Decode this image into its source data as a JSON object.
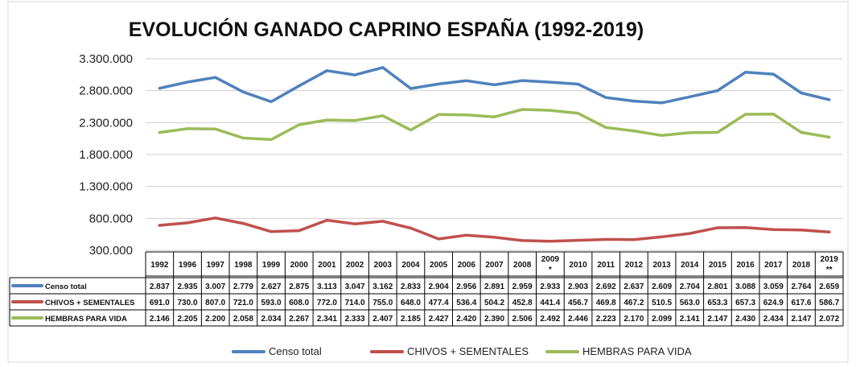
{
  "chart_data": {
    "type": "line",
    "title": "EVOLUCIÓN GANADO CAPRINO ESPAÑA (1992-2019)",
    "xlabel": "",
    "ylabel": "",
    "ylim": [
      300000,
      3300000
    ],
    "yticks": [
      300000,
      800000,
      1300000,
      1800000,
      2300000,
      2800000,
      3300000
    ],
    "ytick_labels": [
      "300.000",
      "800.000",
      "1.300.000",
      "1.800.000",
      "2.300.000",
      "2.800.000",
      "3.300.000"
    ],
    "grid": true,
    "legend": "bottom",
    "categories": [
      {
        "top": "1992",
        "bottom": ""
      },
      {
        "top": "1996",
        "bottom": ""
      },
      {
        "top": "1997",
        "bottom": ""
      },
      {
        "top": "1998",
        "bottom": ""
      },
      {
        "top": "1999",
        "bottom": ""
      },
      {
        "top": "2000",
        "bottom": ""
      },
      {
        "top": "2001",
        "bottom": ""
      },
      {
        "top": "2002",
        "bottom": ""
      },
      {
        "top": "2003",
        "bottom": ""
      },
      {
        "top": "2004",
        "bottom": ""
      },
      {
        "top": "2005",
        "bottom": ""
      },
      {
        "top": "2006",
        "bottom": ""
      },
      {
        "top": "2007",
        "bottom": ""
      },
      {
        "top": "2008",
        "bottom": ""
      },
      {
        "top": "2009",
        "bottom": "*"
      },
      {
        "top": "2010",
        "bottom": ""
      },
      {
        "top": "2011",
        "bottom": ""
      },
      {
        "top": "2012",
        "bottom": ""
      },
      {
        "top": "2013",
        "bottom": ""
      },
      {
        "top": "2014",
        "bottom": ""
      },
      {
        "top": "2015",
        "bottom": ""
      },
      {
        "top": "2016",
        "bottom": ""
      },
      {
        "top": "2017",
        "bottom": ""
      },
      {
        "top": "2018",
        "bottom": ""
      },
      {
        "top": "2019",
        "bottom": "**"
      }
    ],
    "series": [
      {
        "name": "Censo  total",
        "color": "#4f81bd",
        "values": [
          2837000,
          2935000,
          3007000,
          2779000,
          2627000,
          2875000,
          3113000,
          3047000,
          3162000,
          2833000,
          2904000,
          2956000,
          2891000,
          2959000,
          2933000,
          2903000,
          2692000,
          2637000,
          2609000,
          2704000,
          2801000,
          3088000,
          3059000,
          2764000,
          2659000
        ],
        "labels": [
          "2.837",
          "2.935",
          "3.007",
          "2.779",
          "2.627",
          "2.875",
          "3.113",
          "3.047",
          "3.162",
          "2.833",
          "2.904",
          "2.956",
          "2.891",
          "2.959",
          "2.933",
          "2.903",
          "2.692",
          "2.637",
          "2.609",
          "2.704",
          "2.801",
          "3.088",
          "3.059",
          "2.764",
          "2.659"
        ]
      },
      {
        "name": "CHIVOS + SEMENTALES",
        "color": "#c0504d",
        "values": [
          691000,
          730000,
          807000,
          721000,
          593000,
          608000,
          772000,
          714000,
          755000,
          648000,
          477400,
          536400,
          504200,
          452800,
          441400,
          456700,
          469800,
          467200,
          510500,
          563000,
          653300,
          657300,
          624900,
          617600,
          586700
        ],
        "labels": [
          "691.0",
          "730.0",
          "807.0",
          "721.0",
          "593.0",
          "608.0",
          "772.0",
          "714.0",
          "755.0",
          "648.0",
          "477.4",
          "536.4",
          "504.2",
          "452.8",
          "441.4",
          "456.7",
          "469.8",
          "467.2",
          "510.5",
          "563.0",
          "653.3",
          "657.3",
          "624.9",
          "617.6",
          "586.7"
        ]
      },
      {
        "name": "HEMBRAS PARA VIDA",
        "color": "#9bbb59",
        "values": [
          2146000,
          2205000,
          2200000,
          2058000,
          2034000,
          2267000,
          2341000,
          2333000,
          2407000,
          2185000,
          2427000,
          2420000,
          2390000,
          2506000,
          2492000,
          2446000,
          2223000,
          2170000,
          2099000,
          2141000,
          2147000,
          2430000,
          2434000,
          2147000,
          2072000
        ],
        "labels": [
          "2.146",
          "2.205",
          "2.200",
          "2.058",
          "2.034",
          "2.267",
          "2.341",
          "2.333",
          "2.407",
          "2.185",
          "2.427",
          "2.420",
          "2.390",
          "2.506",
          "2.492",
          "2.446",
          "2.223",
          "2.170",
          "2.099",
          "2.141",
          "2.147",
          "2.430",
          "2.434",
          "2.147",
          "2.072"
        ]
      }
    ]
  }
}
